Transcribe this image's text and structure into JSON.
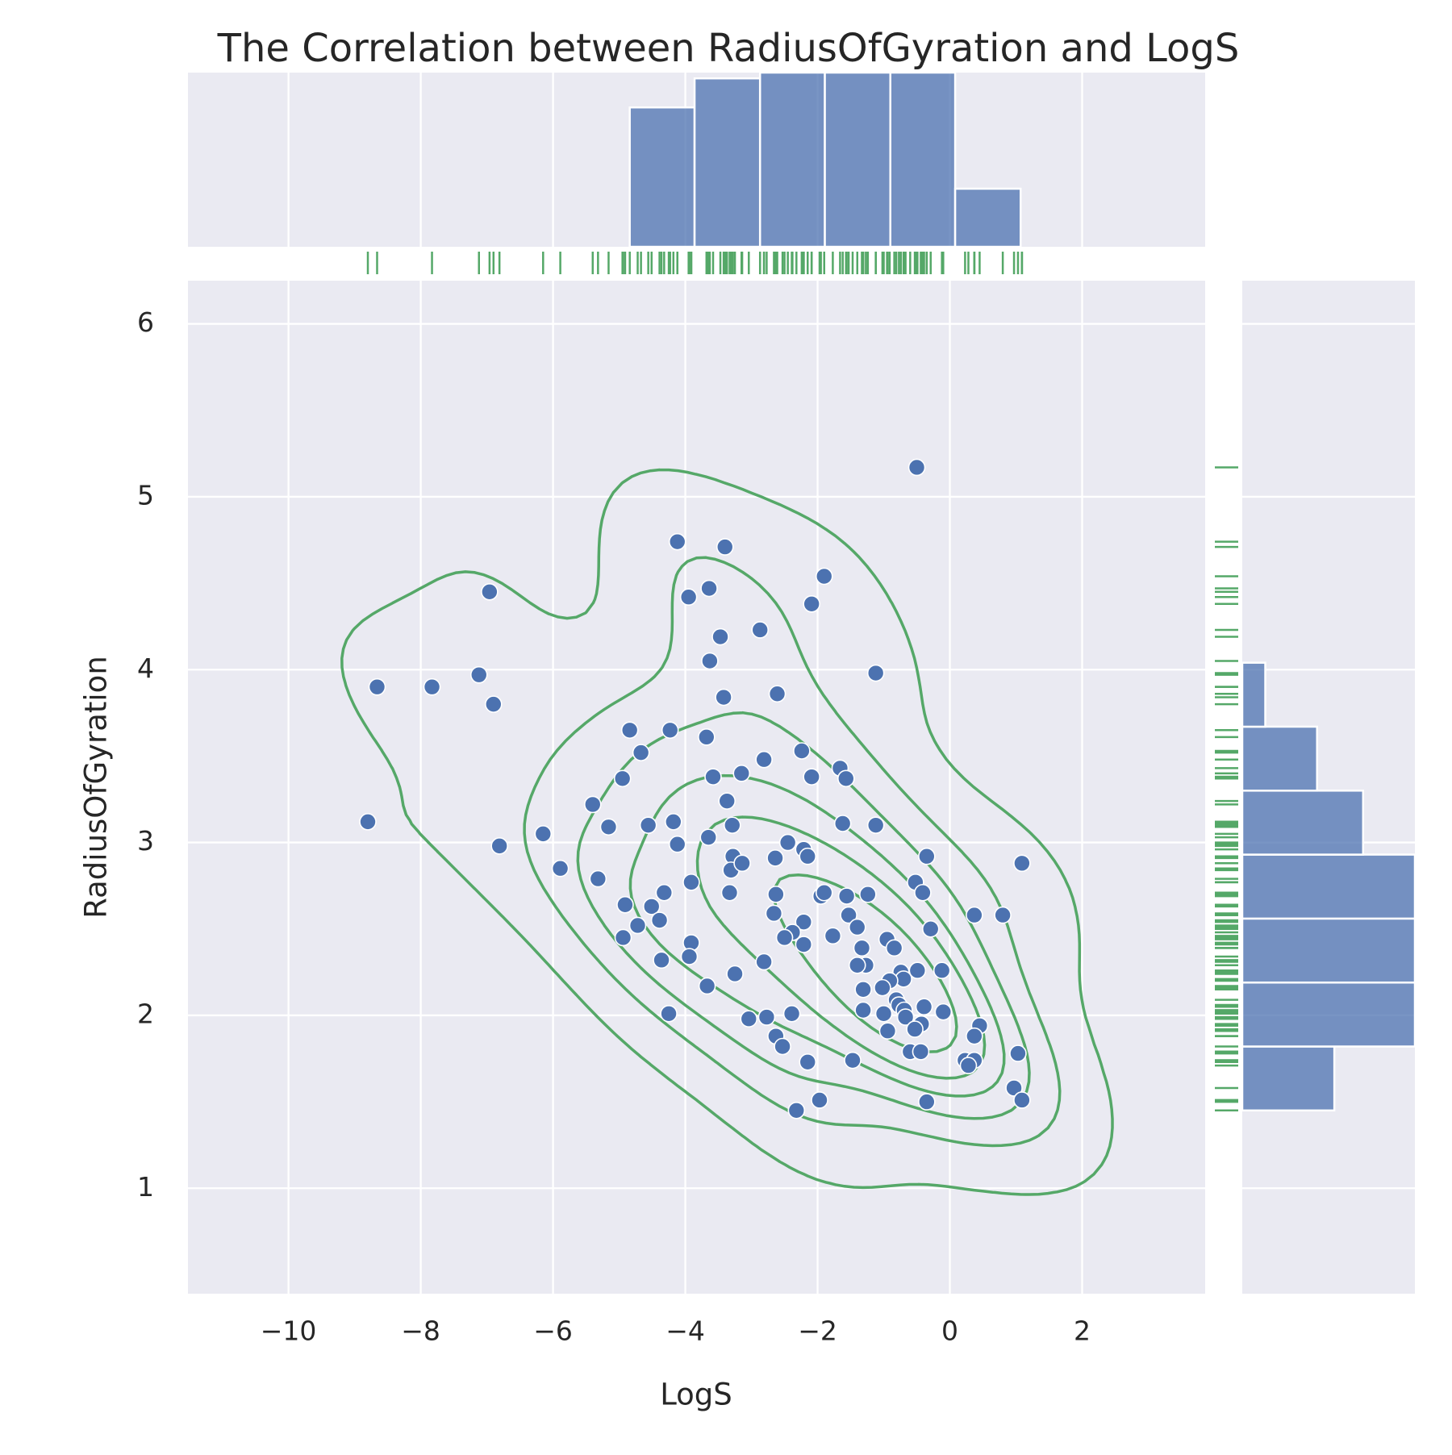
{
  "chart_data": {
    "type": "scatter",
    "title": "The Correlation between RadiusOfGyration and LogS",
    "x_label": "LogS",
    "y_label": "RadiusOfGyration",
    "color": "#4c72b0",
    "x": [
      -0.5,
      -4.12,
      -3.4,
      -1.9,
      -6.96,
      -3.64,
      -3.95,
      -2.09,
      -3.47,
      -2.87,
      -1.12,
      -7.12,
      -3.63,
      -8.66,
      -7.83,
      -6.9,
      -3.42,
      -2.61,
      -4.84,
      -4.23,
      -3.68,
      -4.67,
      -2.24,
      -2.81,
      -4.95,
      -3.58,
      -3.15,
      -2.09,
      -1.66,
      -1.57,
      -3.37,
      -5.4,
      -8.8,
      -5.16,
      -4.56,
      -4.18,
      -3.29,
      -1.62,
      -1.12,
      -6.15,
      -6.81,
      -4.12,
      -3.65,
      -2.45,
      -2.21,
      -2.15,
      -0.35,
      1.09,
      -3.28,
      -2.64,
      -3.31,
      -3.14,
      -5.89,
      -5.32,
      -3.91,
      -0.52,
      -0.41,
      -3.33,
      -4.32,
      -2.63,
      -1.95,
      -1.9,
      -1.56,
      -1.24,
      -4.91,
      -4.51,
      -2.66,
      -1.53,
      0.37,
      0.8,
      -4.39,
      -4.72,
      -2.21,
      -1.4,
      -0.29,
      -1.77,
      -2.38,
      -2.5,
      -4.94,
      -0.95,
      -2.21,
      -3.91,
      -1.33,
      -0.84,
      -4.36,
      -3.94,
      -2.81,
      -1.27,
      -1.4,
      -0.74,
      -0.49,
      -0.12,
      -3.25,
      -0.7,
      -0.91,
      -3.67,
      -1.31,
      -1.02,
      -0.81,
      -0.77,
      -0.69,
      -0.39,
      -1.31,
      -4.25,
      -2.39,
      -1.0,
      -0.1,
      -0.67,
      -2.77,
      -3.04,
      -0.43,
      0.45,
      -0.53,
      -0.94,
      0.37,
      -2.63,
      -2.53,
      -0.6,
      -0.44,
      1.03,
      -2.15,
      -1.47,
      0.23,
      0.37,
      0.28,
      0.97,
      1.09,
      -1.97,
      -0.35,
      -2.32
    ],
    "y": [
      5.17,
      4.74,
      4.71,
      4.54,
      4.45,
      4.47,
      4.42,
      4.38,
      4.19,
      4.23,
      3.98,
      3.97,
      4.05,
      3.9,
      3.9,
      3.8,
      3.84,
      3.86,
      3.65,
      3.65,
      3.61,
      3.52,
      3.53,
      3.48,
      3.37,
      3.38,
      3.4,
      3.38,
      3.43,
      3.37,
      3.24,
      3.22,
      3.12,
      3.09,
      3.1,
      3.12,
      3.1,
      3.11,
      3.1,
      3.05,
      2.98,
      2.99,
      3.03,
      3.0,
      2.96,
      2.92,
      2.92,
      2.88,
      2.92,
      2.91,
      2.84,
      2.88,
      2.85,
      2.79,
      2.77,
      2.77,
      2.71,
      2.71,
      2.71,
      2.7,
      2.69,
      2.71,
      2.69,
      2.7,
      2.64,
      2.63,
      2.59,
      2.58,
      2.58,
      2.58,
      2.55,
      2.52,
      2.54,
      2.51,
      2.5,
      2.46,
      2.48,
      2.45,
      2.45,
      2.44,
      2.41,
      2.42,
      2.39,
      2.39,
      2.32,
      2.34,
      2.31,
      2.29,
      2.29,
      2.25,
      2.26,
      2.26,
      2.24,
      2.21,
      2.2,
      2.17,
      2.15,
      2.16,
      2.09,
      2.06,
      2.03,
      2.05,
      2.03,
      2.01,
      2.01,
      2.01,
      2.02,
      1.99,
      1.99,
      1.98,
      1.95,
      1.94,
      1.92,
      1.91,
      1.88,
      1.88,
      1.82,
      1.79,
      1.79,
      1.78,
      1.73,
      1.74,
      1.74,
      1.74,
      1.71,
      1.58,
      1.51,
      1.51,
      1.5,
      1.45
    ],
    "xlim": [
      -11.52,
      3.86
    ],
    "ylim": [
      0.39,
      6.25
    ],
    "xticks": [
      {
        "value": -10,
        "label": "−10"
      },
      {
        "value": -8,
        "label": "−8"
      },
      {
        "value": -6,
        "label": "−6"
      },
      {
        "value": -4,
        "label": "−4"
      },
      {
        "value": -2,
        "label": "−2"
      },
      0,
      2
    ],
    "yticks": [
      1,
      2,
      3,
      4,
      5,
      6
    ],
    "grid": true,
    "kde": {
      "color": "#55a868",
      "contours": 6
    },
    "rug": {
      "color": "#55a868"
    },
    "x_hist": {
      "bins": [
        -4.84,
        -3.86,
        -2.87,
        -1.89,
        -0.9,
        0.08,
        1.07
      ],
      "counts": [
        24,
        29,
        30,
        30,
        30,
        10
      ],
      "ylim": [
        0,
        30
      ],
      "color": "#4c72b0"
    },
    "y_hist": {
      "bins": [
        1.45,
        1.82,
        2.19,
        2.56,
        2.93,
        3.3,
        3.67,
        4.04
      ],
      "counts": [
        16,
        30,
        30,
        30,
        21,
        13,
        4
      ],
      "xlim": [
        0,
        30
      ],
      "color": "#4c72b0"
    }
  }
}
